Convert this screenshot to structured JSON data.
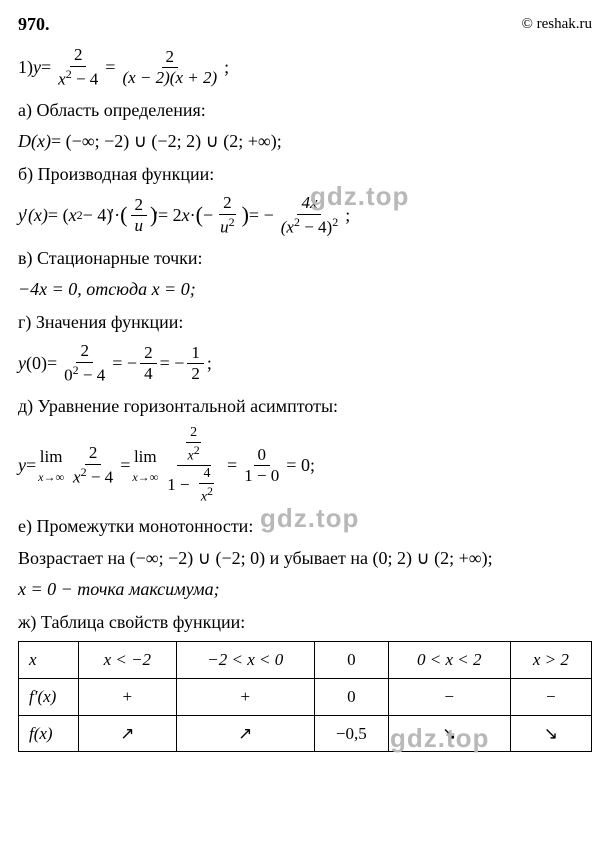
{
  "header": {
    "problem": "970.",
    "copyright": "© reshak.ru"
  },
  "eq1": {
    "prefix": "1) ",
    "y": "y",
    "eq": " = ",
    "num1": "2",
    "den1a": "x",
    "den1b": " − 4",
    "num2": "2",
    "den2": "(x − 2)(x + 2)",
    "semi": " ;"
  },
  "sections": {
    "a": "а) Область определения:",
    "b": "б) Производная функции:",
    "c": "в) Стационарные точки:",
    "d": "г) Значения функции:",
    "e": "д) Уравнение горизонтальной асимптоты:",
    "f": "е) Промежутки монотонности:",
    "g": "ж) Таблица свойств функции:"
  },
  "domain": {
    "D": "D",
    "x": "(x)",
    "eq": " = (−∞;  −2) ∪ (−2;  2) ∪ (2;  +∞);"
  },
  "deriv": {
    "y": "y",
    "prime": "′",
    "x": "(x)",
    "eq1": " = (",
    "xsq": "x",
    "minus4": " − 4)",
    "prime2": "′",
    "dot": " · ",
    "num1": "2",
    "den1": "u",
    "prime3": "′",
    "eq2": " = 2",
    "x2": "x",
    "dot2": " · ",
    "lpar": "(",
    "neg": "−",
    "num2": "2",
    "den2a": "u",
    "rpar": ")",
    "eq3": " = −",
    "num3": "4x",
    "den3a": "(x",
    "den3b": " − 4)",
    "semi": " ;"
  },
  "stationary": {
    "text": "−4x = 0, отсюда x = 0;"
  },
  "value": {
    "y": "y",
    "zero": "(0)",
    "eq": " = ",
    "num1": "2",
    "den1a": "0",
    "den1b": " − 4",
    "eq2": " = −",
    "num2": "2",
    "den2": "4",
    "eq3": " = −",
    "num3": "1",
    "den3": "2",
    "semi": " ;"
  },
  "asymp": {
    "y": "y",
    "eq": " = ",
    "lim": "lim",
    "limsub": "x→∞",
    "num1": "2",
    "den1a": "x",
    "den1b": " − 4",
    "eq2": " = ",
    "num2top": "2",
    "num2bot": "x",
    "den2a": "1 − ",
    "den2num": "4",
    "den2den": "x",
    "eq3": " = ",
    "num3": "0",
    "den3": "1 − 0",
    "eq4": " = 0;"
  },
  "mono": {
    "line1a": "Возрастает на (−∞;  −2) ∪ (−2;  0) и убывает на (0;  2) ∪ (2;  +∞);",
    "line2": "x = 0 − точка максимума;"
  },
  "table": {
    "r1": {
      "c1": "x",
      "c2": "x < −2",
      "c3": "−2 < x < 0",
      "c4": "0",
      "c5": "0 < x < 2",
      "c6": "x > 2"
    },
    "r2": {
      "c1": "f′(x)",
      "c2": "+",
      "c3": "+",
      "c4": "0",
      "c5": "−",
      "c6": "−"
    },
    "r3": {
      "c1": "f(x)",
      "c2": "↗",
      "c3": "↗",
      "c4": "−0,5",
      "c5": "↘",
      "c6": "↘"
    }
  },
  "watermarks": {
    "w1": "gdz.top",
    "w2": "gdz.top",
    "w3": "gdz.top"
  }
}
